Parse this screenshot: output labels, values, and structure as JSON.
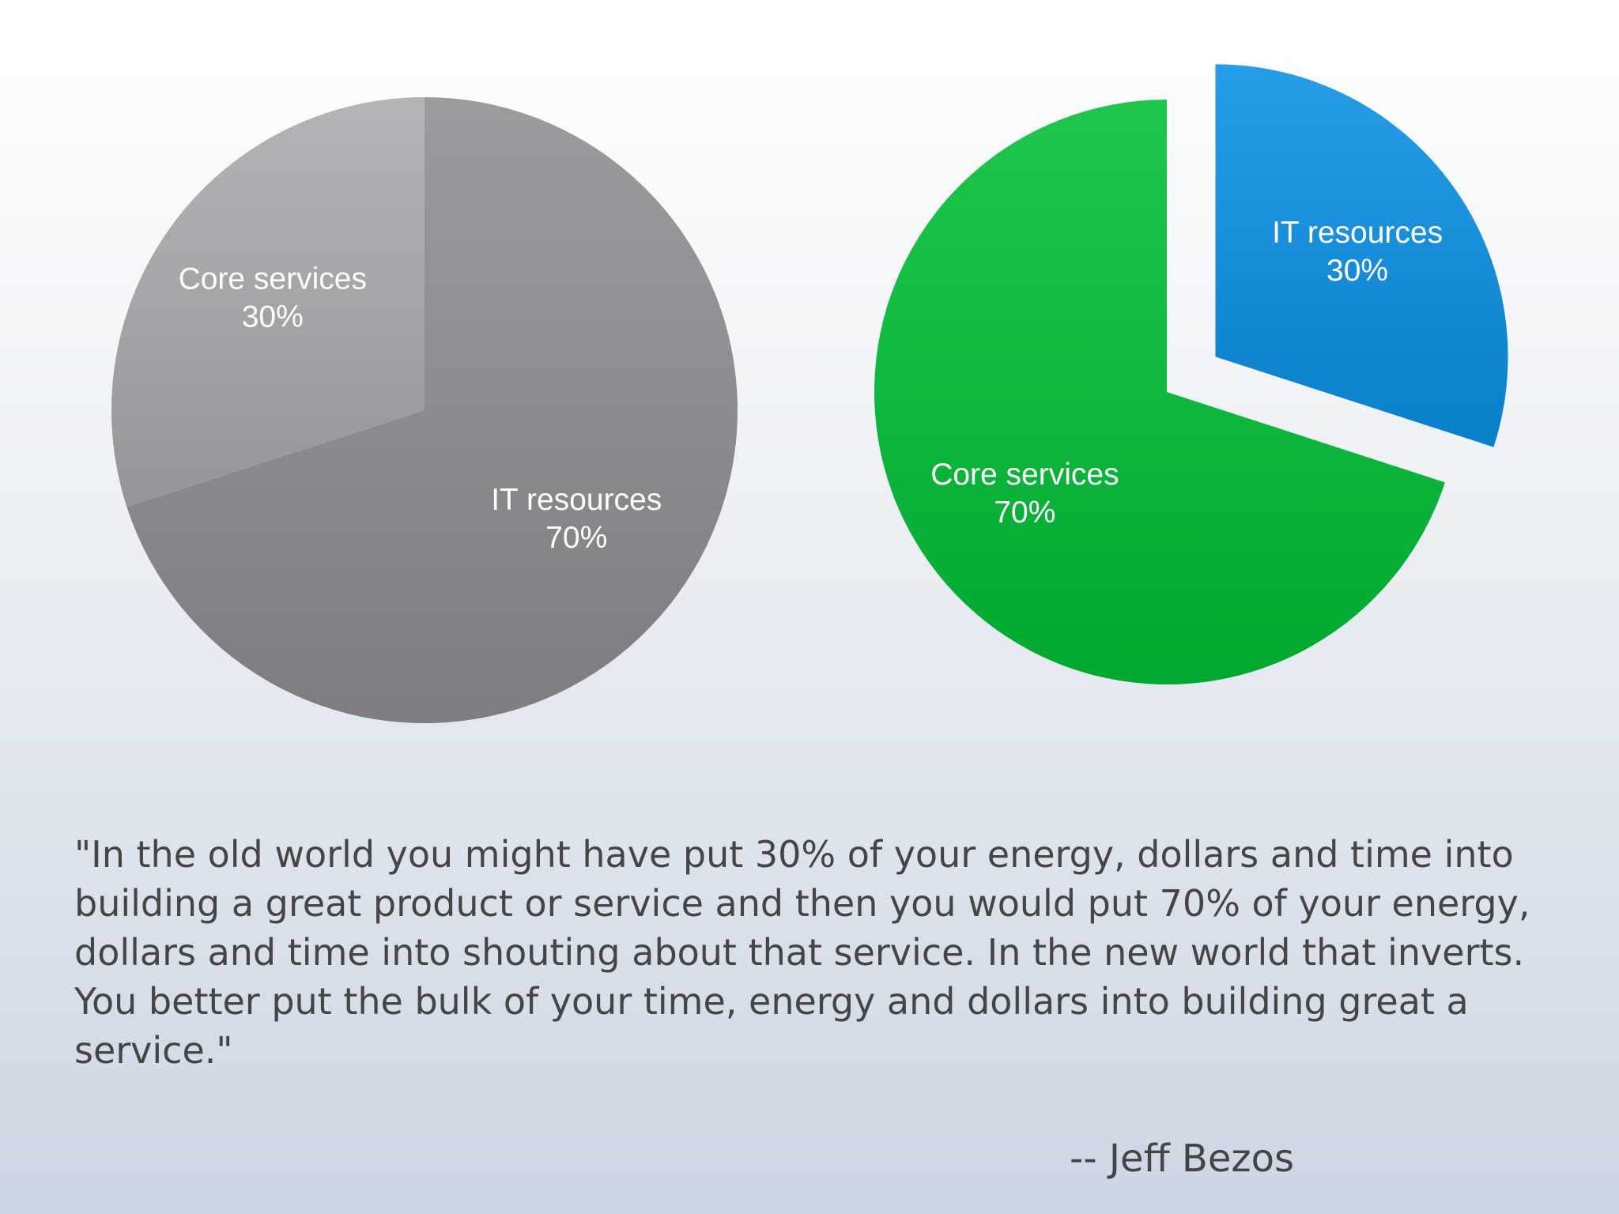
{
  "chart_data": [
    {
      "type": "pie",
      "categories": [
        "IT resources",
        "Core services"
      ],
      "values": [
        70,
        30
      ],
      "value_labels": [
        "70%",
        "30%"
      ],
      "colors": [
        "#8e8e93",
        "#aaaaaf"
      ],
      "exploded": [
        false,
        false
      ]
    },
    {
      "type": "pie",
      "categories": [
        "IT resources",
        "Core services"
      ],
      "values": [
        30,
        70
      ],
      "value_labels": [
        "30%",
        "70%"
      ],
      "colors": [
        "#0a8fe6",
        "#00bf35"
      ],
      "exploded": [
        true,
        false
      ]
    }
  ],
  "quote": {
    "text": "\"In the old world you might have put 30% of your energy, dollars and time into building a great product or service and then you would put 70% of your energy, dollars and time into shouting about that service. In the new world that inverts. You better put the bulk of your time, energy and dollars into building great a service.\"",
    "attribution": "-- Jeff Bezos"
  }
}
